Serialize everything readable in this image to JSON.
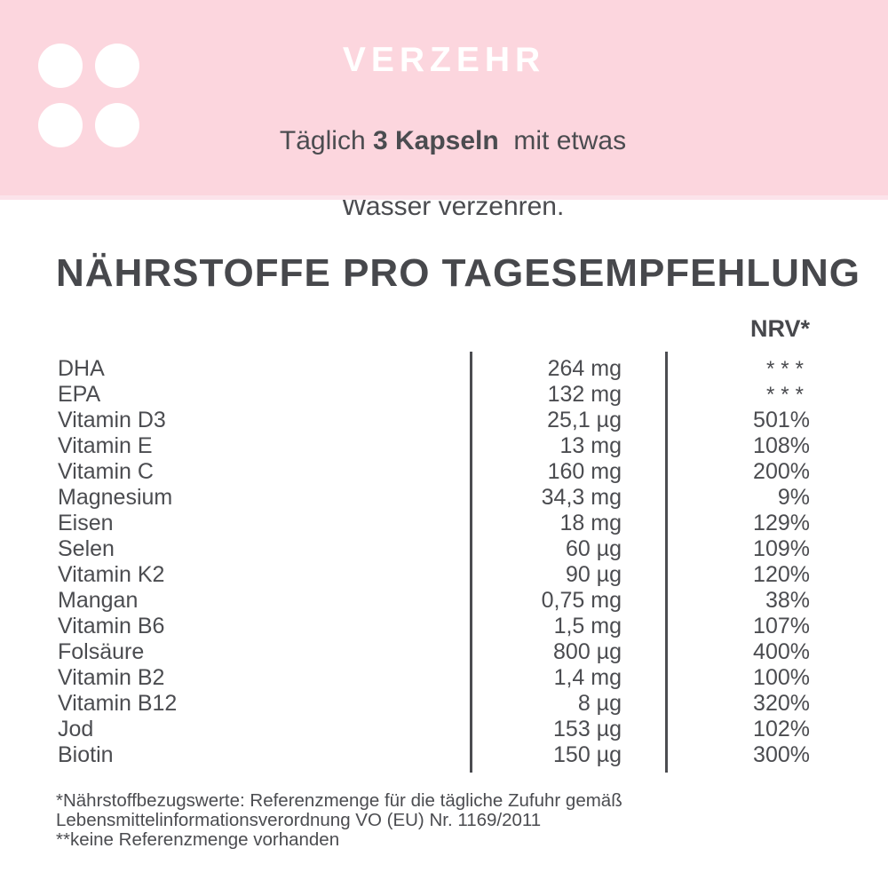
{
  "banner": {
    "title": "VERZEHR",
    "instruction": {
      "prefix": "Täglich ",
      "bold": "3 Kapseln",
      "suffix": "  mit etwas",
      "line2": "Wasser verzehren."
    }
  },
  "main": {
    "title": "NÄHRSTOFFE PRO TAGESEMPFEHLUNG",
    "nrv_header": "NRV*",
    "table": {
      "rows": [
        {
          "label": "DHA",
          "amount": "264 mg",
          "nrv": "***"
        },
        {
          "label": "EPA",
          "amount": "132 mg",
          "nrv": "***"
        },
        {
          "label": "Vitamin D3",
          "amount": "25,1 µg",
          "nrv": "501%"
        },
        {
          "label": "Vitamin E",
          "amount": "13 mg",
          "nrv": "108%"
        },
        {
          "label": "Vitamin C",
          "amount": "160 mg",
          "nrv": "200%"
        },
        {
          "label": "Magnesium",
          "amount": "34,3 mg",
          "nrv": "9%"
        },
        {
          "label": "Eisen",
          "amount": "18 mg",
          "nrv": "129%"
        },
        {
          "label": "Selen",
          "amount": "60 µg",
          "nrv": "109%"
        },
        {
          "label": "Vitamin K2",
          "amount": "90 µg",
          "nrv": "120%"
        },
        {
          "label": "Mangan",
          "amount": "0,75 mg",
          "nrv": "38%"
        },
        {
          "label": "Vitamin B6",
          "amount": "1,5 mg",
          "nrv": "107%"
        },
        {
          "label": "Folsäure",
          "amount": "800 µg",
          "nrv": "400%"
        },
        {
          "label": "Vitamin B2",
          "amount": "1,4 mg",
          "nrv": "100%"
        },
        {
          "label": "Vitamin B12",
          "amount": "8 µg",
          "nrv": "320%"
        },
        {
          "label": "Jod",
          "amount": "153 µg",
          "nrv": "102%"
        },
        {
          "label": "Biotin",
          "amount": "150 µg",
          "nrv": "300%"
        }
      ]
    },
    "footnotes": [
      "*Nährstoffbezugswerte: Referenzmenge für die tägliche Zufuhr gemäß",
      "Lebensmittelinformationsverordnung VO (EU) Nr. 1169/2011",
      "**keine Referenzmenge vorhanden"
    ]
  },
  "colors": {
    "banner_pink": "#fcd6de",
    "banner_strip": "#fce3ea",
    "text_dark": "#4b4c50",
    "heading_dark": "#47484c",
    "divider": "#4c4d51",
    "white": "#ffffff"
  }
}
